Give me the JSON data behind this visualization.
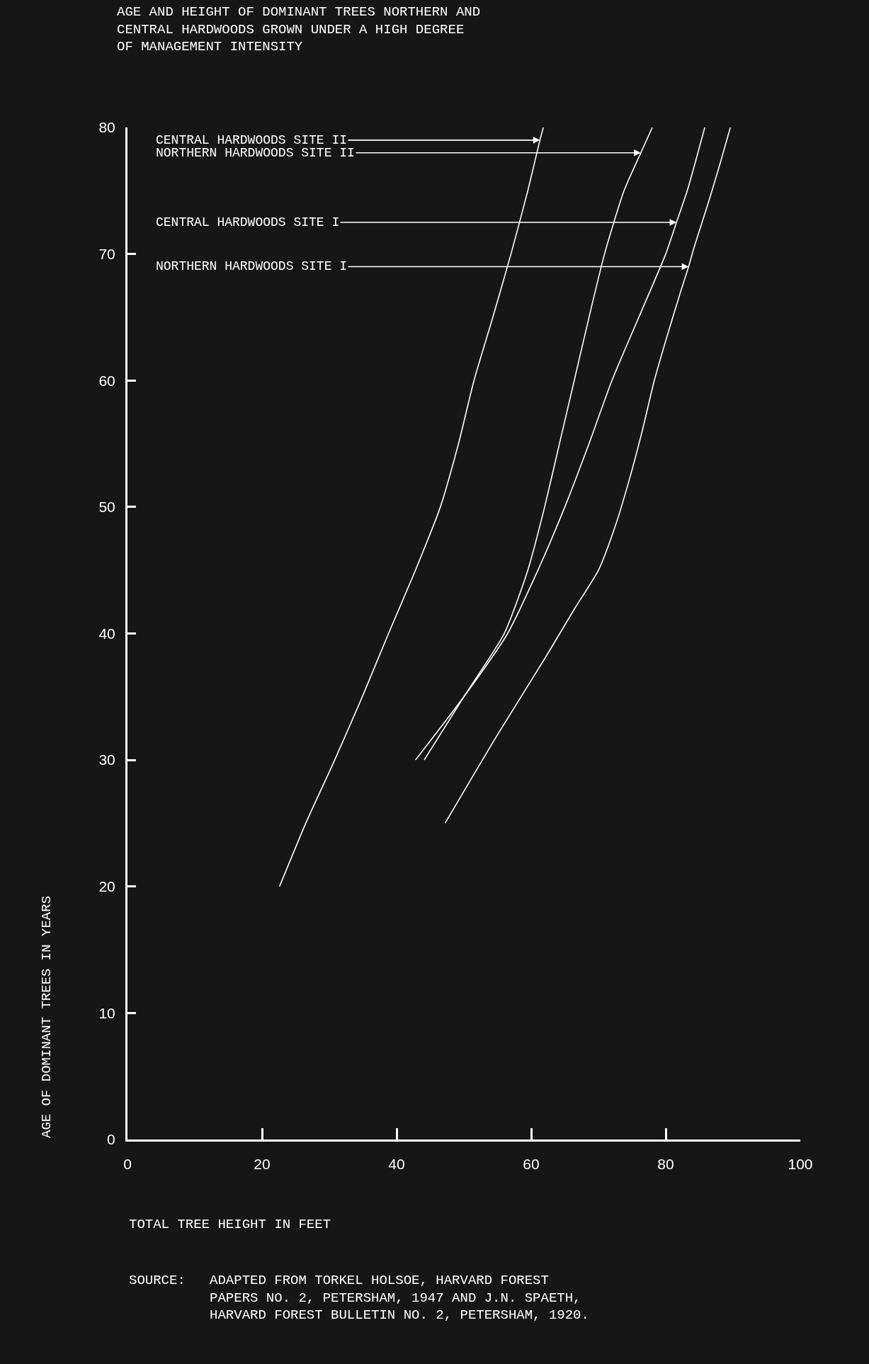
{
  "chart_data": {
    "type": "line",
    "title": "AGE AND HEIGHT OF DOMINANT TREES NORTHERN AND\nCENTRAL HARDWOODS GROWN UNDER A HIGH DEGREE\nOF MANAGEMENT INTENSITY",
    "xlabel": "TOTAL TREE HEIGHT IN FEET",
    "ylabel": "AGE OF DOMINANT TREES IN YEARS",
    "series": [
      {
        "color": "#ffffff",
        "x": [
          22.6,
          26.5,
          30.8,
          34.9,
          38.8,
          42.8,
          46.5,
          49.2,
          51.5,
          54.3,
          57,
          59.5,
          61.3,
          61.8
        ],
        "values": [
          20,
          25,
          30,
          35,
          40,
          45,
          50,
          55,
          60,
          65,
          70,
          75,
          79,
          80
        ]
      },
      {
        "color": "#ffffff",
        "x": [
          44.1,
          50,
          56,
          59.5,
          62,
          64.2,
          66.4,
          68.6,
          70.9,
          73.8,
          76.3,
          78
        ],
        "values": [
          30,
          35,
          40,
          45,
          50,
          55,
          60,
          65,
          70,
          75,
          78,
          80
        ]
      },
      {
        "color": "#ffffff",
        "x": [
          42.8,
          50,
          56.5,
          61,
          65,
          68.6,
          72,
          76,
          80,
          81.6,
          83.2,
          85.8
        ],
        "values": [
          30,
          35,
          40,
          45,
          50,
          55,
          60,
          65,
          70,
          72.5,
          75,
          80
        ]
      },
      {
        "color": "#ffffff",
        "x": [
          47.2,
          55,
          62,
          66.5,
          70,
          72.5,
          74.5,
          76.5,
          78.3,
          80.2,
          82.2,
          83.4,
          84.2,
          86.3,
          88,
          89.6
        ],
        "values": [
          25,
          32,
          38,
          42,
          45,
          48.5,
          52,
          56,
          60,
          63.5,
          67,
          69,
          70.5,
          74,
          77,
          80
        ]
      }
    ],
    "xlim": [
      0,
      100
    ],
    "ylim": [
      0,
      80
    ],
    "xticks": [
      0,
      20,
      40,
      60,
      80,
      100
    ],
    "yticks": [
      0,
      10,
      20,
      30,
      40,
      50,
      60,
      70,
      80
    ],
    "grid": false,
    "marker": "none",
    "line_style": "solid",
    "annotations": [
      {
        "text": "CENTRAL HARDWOODS SITE II",
        "x": 61.3,
        "y": 79
      },
      {
        "text": "NORTHERN HARDWOODS SITE II",
        "x": 76.3,
        "y": 78
      },
      {
        "text": "CENTRAL HARDWOODS SITE I",
        "x": 81.6,
        "y": 72.5
      },
      {
        "text": "NORTHERN HARDWOODS SITE I",
        "x": 83.4,
        "y": 69
      },
      "SOURCE: ADAPTED FROM TORKEL HOLSOE, HARVARD FOREST\nPAPERS NO. 2, PETERSHAM, 1947 AND J.N. SPAETH,\nHARVARD FOREST BULLETIN NO. 2, PETERSHAM, 1920."
    ]
  }
}
